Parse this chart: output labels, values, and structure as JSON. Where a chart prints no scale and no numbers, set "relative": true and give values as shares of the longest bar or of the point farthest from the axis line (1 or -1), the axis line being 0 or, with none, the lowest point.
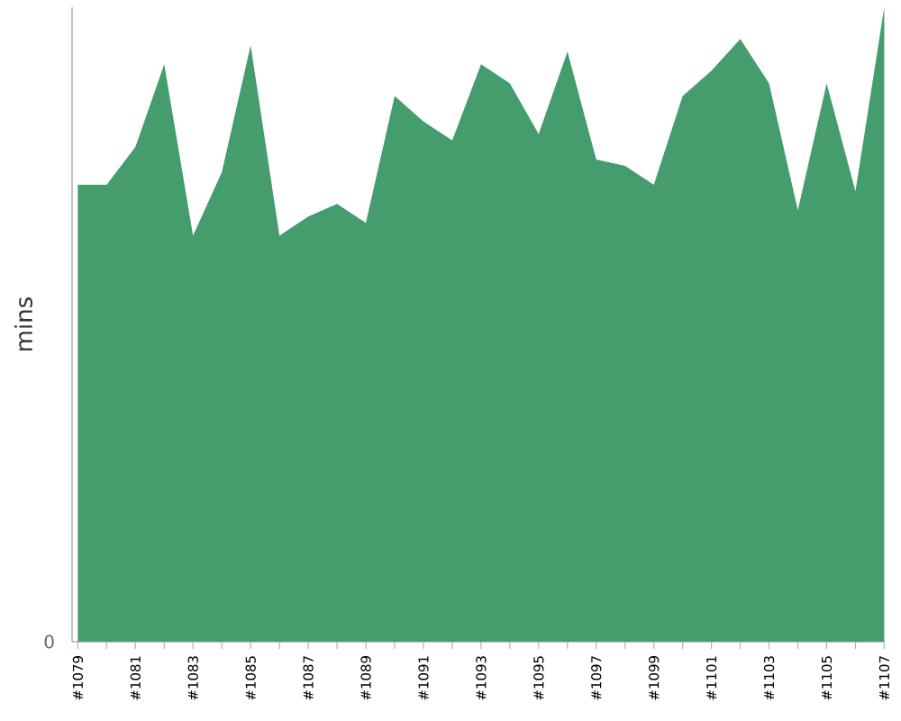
{
  "chart_data": {
    "type": "area",
    "ylabel": "mins",
    "relative": true,
    "annotations": [
      "0"
    ],
    "color": "#459c6d",
    "categories": [
      "#1079",
      null,
      "#1081",
      null,
      "#1083",
      null,
      "#1085",
      null,
      "#1087",
      null,
      "#1089",
      null,
      "#1091",
      null,
      "#1093",
      null,
      "#1095",
      null,
      "#1097",
      null,
      "#1099",
      null,
      "#1101",
      null,
      "#1103",
      null,
      "#1105",
      null,
      "#1107"
    ],
    "values": [
      0.72,
      0.72,
      0.78,
      0.91,
      0.64,
      0.74,
      0.94,
      0.64,
      0.67,
      0.69,
      0.66,
      0.86,
      0.82,
      0.79,
      0.91,
      0.88,
      0.8,
      0.93,
      0.76,
      0.75,
      0.72,
      0.86,
      0.9,
      0.95,
      0.88,
      0.68,
      0.88,
      0.71,
      1
    ]
  }
}
